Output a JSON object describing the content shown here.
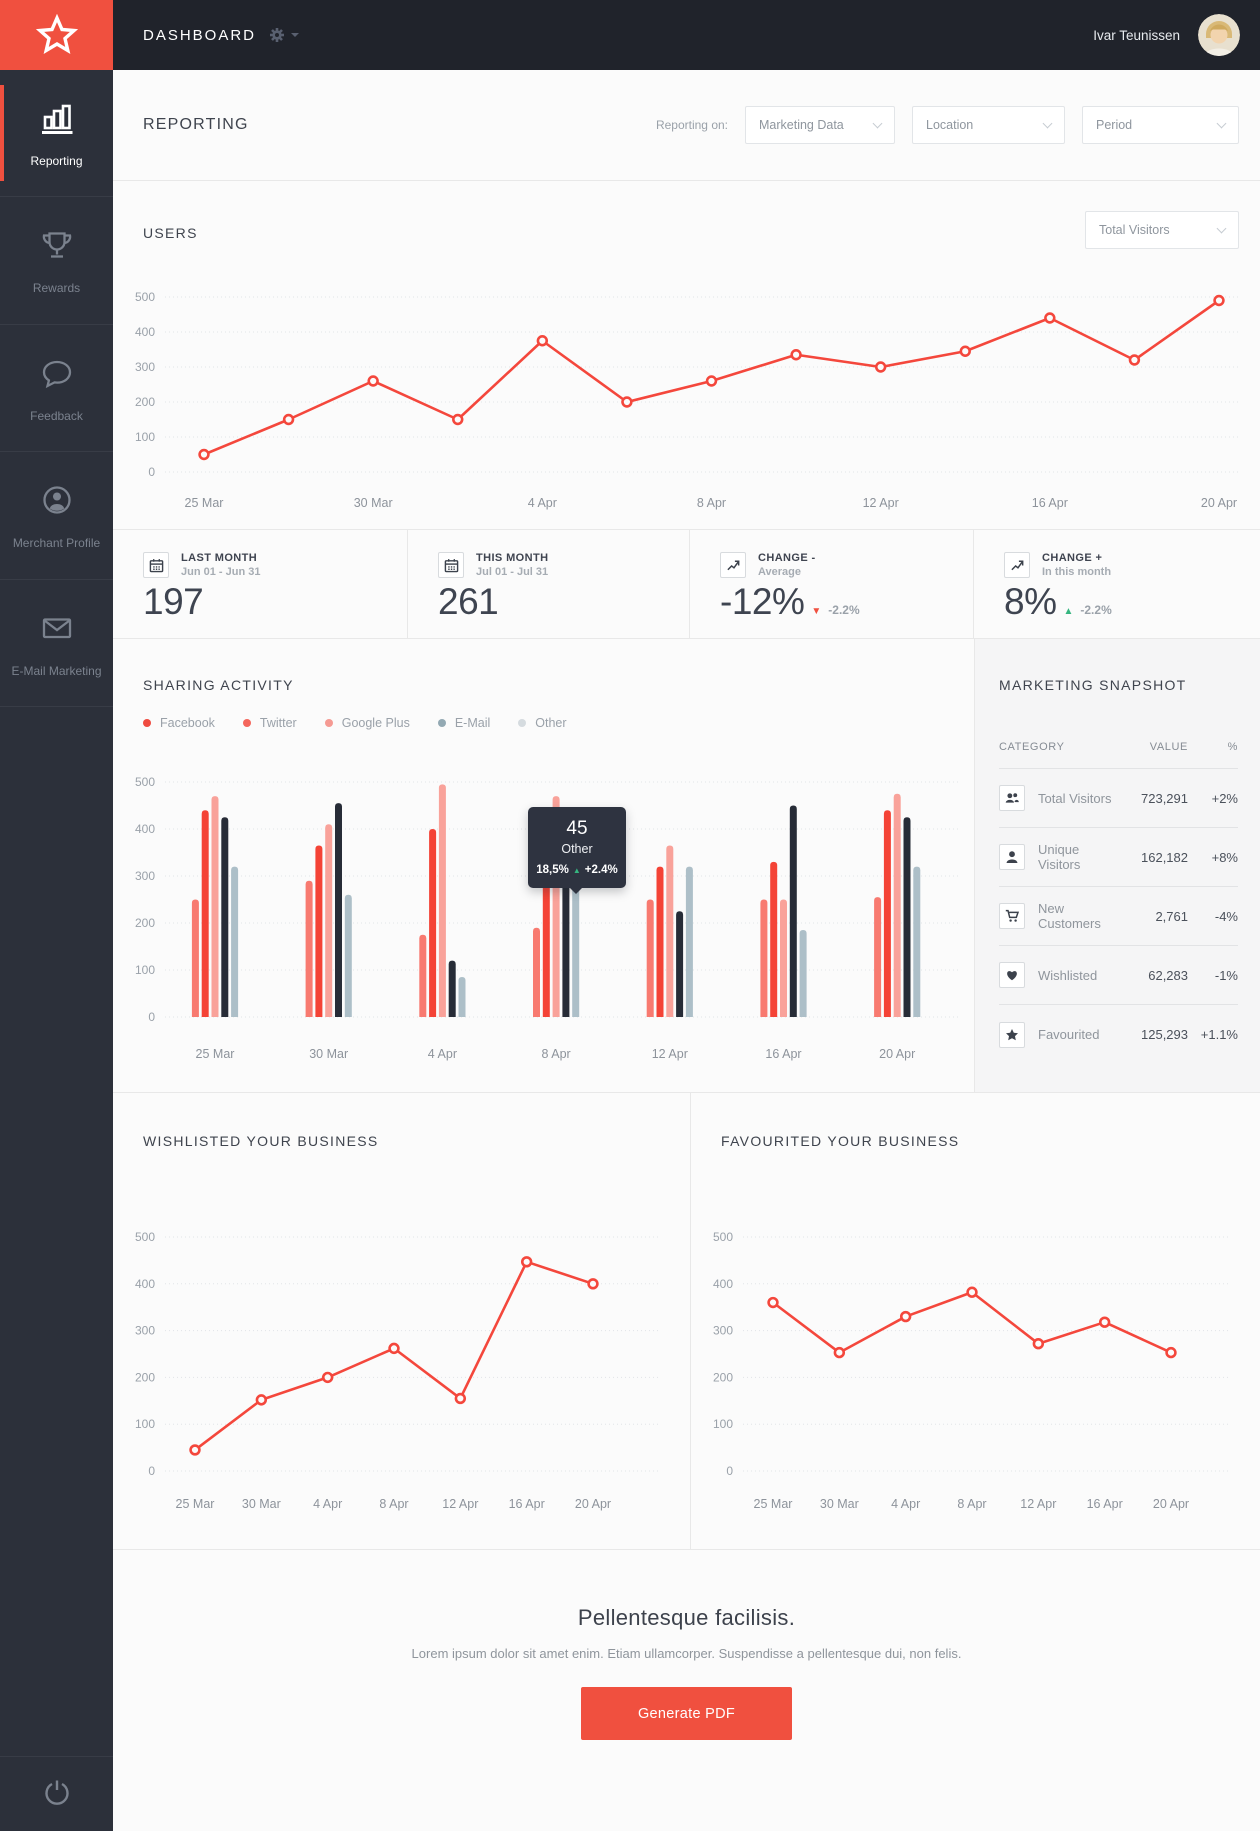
{
  "header": {
    "title": "DASHBOARD",
    "user": "Ivar Teunissen"
  },
  "sidebar": {
    "items": [
      {
        "label": "Reporting",
        "icon": "bar-chart-icon",
        "active": true
      },
      {
        "label": "Rewards",
        "icon": "trophy-icon",
        "active": false
      },
      {
        "label": "Feedback",
        "icon": "speech-bubble-icon",
        "active": false
      },
      {
        "label": "Merchant Profile",
        "icon": "user-circle-icon",
        "active": false
      },
      {
        "label": "E-Mail Marketing",
        "icon": "envelope-icon",
        "active": false
      }
    ]
  },
  "report_header": {
    "title": "REPORTING",
    "filter_label": "Reporting on:",
    "filters": [
      "Marketing Data",
      "Location",
      "Period"
    ]
  },
  "users_section": {
    "title": "USERS",
    "dropdown": "Total Visitors"
  },
  "stats": [
    {
      "title": "LAST MONTH",
      "subtitle": "Jun 01 - Jun 31",
      "value": "197"
    },
    {
      "title": "THIS MONTH",
      "subtitle": "Jul 01 - Jul 31",
      "value": "261"
    },
    {
      "title": "CHANGE -",
      "subtitle": "Average",
      "value": "-12%",
      "delta": "-2.2%",
      "trend": "down"
    },
    {
      "title": "CHANGE +",
      "subtitle": "In this month",
      "value": "8%",
      "delta": "-2.2%",
      "trend": "up"
    }
  ],
  "sharing": {
    "title": "SHARING ACTIVITY",
    "legend": [
      {
        "name": "Facebook",
        "color": "#ef4b40"
      },
      {
        "name": "Twitter",
        "color": "#f4665c"
      },
      {
        "name": "Google Plus",
        "color": "#f59a93"
      },
      {
        "name": "E-Mail",
        "color": "#93a9b3"
      },
      {
        "name": "Other",
        "color": "#d5dbdf"
      }
    ],
    "tooltip": {
      "value": "45",
      "label": "Other",
      "pct": "18,5%",
      "delta": "+2.4%",
      "trend": "up"
    }
  },
  "snapshot": {
    "title": "MARKETING SNAPSHOT",
    "columns": [
      "CATEGORY",
      "VALUE",
      "%"
    ],
    "rows": [
      {
        "icon": "people-icon",
        "label": "Total Visitors",
        "value": "723,291",
        "pct": "+2%"
      },
      {
        "icon": "person-icon",
        "label": "Unique Visitors",
        "value": "162,182",
        "pct": "+8%"
      },
      {
        "icon": "cart-icon",
        "label": "New Customers",
        "value": "2,761",
        "pct": "-4%"
      },
      {
        "icon": "heart-icon",
        "label": "Wishlisted",
        "value": "62,283",
        "pct": "-1%"
      },
      {
        "icon": "star-icon",
        "label": "Favourited",
        "value": "125,293",
        "pct": "+1.1%"
      }
    ]
  },
  "bottom_charts": {
    "wishlisted_title": "WISHLISTED YOUR BUSINESS",
    "favourited_title": "FAVOURITED YOUR BUSINESS"
  },
  "cta": {
    "heading": "Pellentesque facilisis.",
    "text": "Lorem ipsum dolor sit amet enim. Etiam ullamcorper. Suspendisse a pellentesque dui, non felis.",
    "button": "Generate PDF"
  },
  "chart_data": [
    {
      "id": "users",
      "type": "line",
      "title": "USERS",
      "color": "#f4473c",
      "x_labels": [
        "25 Mar",
        "30 Mar",
        "4 Apr",
        "8 Apr",
        "12 Apr",
        "16 Apr",
        "20 Apr"
      ],
      "points_per_label": 2,
      "values": [
        50,
        150,
        260,
        150,
        375,
        200,
        260,
        335,
        300,
        345,
        440,
        320,
        490
      ],
      "ylim": [
        0,
        500
      ],
      "y_ticks": [
        0,
        100,
        200,
        300,
        400,
        500
      ],
      "grid": "dotted-horizontal",
      "legend_position": "none"
    },
    {
      "id": "sharing",
      "type": "bar",
      "title": "SHARING ACTIVITY",
      "categories": [
        "25 Mar",
        "30 Mar",
        "4 Apr",
        "8 Apr",
        "12 Apr",
        "16 Apr",
        "20 Apr"
      ],
      "series": [
        {
          "name": "Facebook",
          "color": "#f87a70",
          "values": [
            250,
            290,
            175,
            190,
            250,
            250,
            255
          ]
        },
        {
          "name": "Twitter",
          "color": "#f44336",
          "values": [
            440,
            365,
            400,
            320,
            320,
            330,
            440
          ]
        },
        {
          "name": "Google Plus",
          "color": "#f9a29a",
          "values": [
            470,
            410,
            495,
            470,
            365,
            250,
            475
          ]
        },
        {
          "name": "E-Mail",
          "color": "#272c37",
          "values": [
            425,
            455,
            120,
            310,
            225,
            450,
            425
          ]
        },
        {
          "name": "Other",
          "color": "#adbfc8",
          "values": [
            320,
            260,
            85,
            280,
            320,
            185,
            320
          ]
        }
      ],
      "ylim": [
        0,
        500
      ],
      "y_ticks": [
        0,
        100,
        200,
        300,
        400,
        500
      ],
      "grid": "dotted-horizontal",
      "legend_position": "top-left"
    },
    {
      "id": "wishlisted",
      "type": "line",
      "title": "WISHLISTED YOUR BUSINESS",
      "color": "#f4473c",
      "x_labels": [
        "25 Mar",
        "30 Mar",
        "4 Apr",
        "8 Apr",
        "12 Apr",
        "16 Apr",
        "20 Apr"
      ],
      "points_per_label": 1,
      "values": [
        45,
        152,
        200,
        262,
        155,
        447,
        400
      ],
      "ylim": [
        0,
        500
      ],
      "y_ticks": [
        0,
        100,
        200,
        300,
        400,
        500
      ],
      "grid": "dotted-horizontal",
      "legend_position": "none"
    },
    {
      "id": "favourited",
      "type": "line",
      "title": "FAVOURITED YOUR BUSINESS",
      "color": "#f4473c",
      "x_labels": [
        "25 Mar",
        "30 Mar",
        "4 Apr",
        "8 Apr",
        "12 Apr",
        "16 Apr",
        "20 Apr"
      ],
      "points_per_label": 1,
      "values": [
        360,
        253,
        330,
        382,
        272,
        318,
        253
      ],
      "ylim": [
        0,
        500
      ],
      "y_ticks": [
        0,
        100,
        200,
        300,
        400,
        500
      ],
      "grid": "dotted-horizontal",
      "legend_position": "none"
    }
  ]
}
